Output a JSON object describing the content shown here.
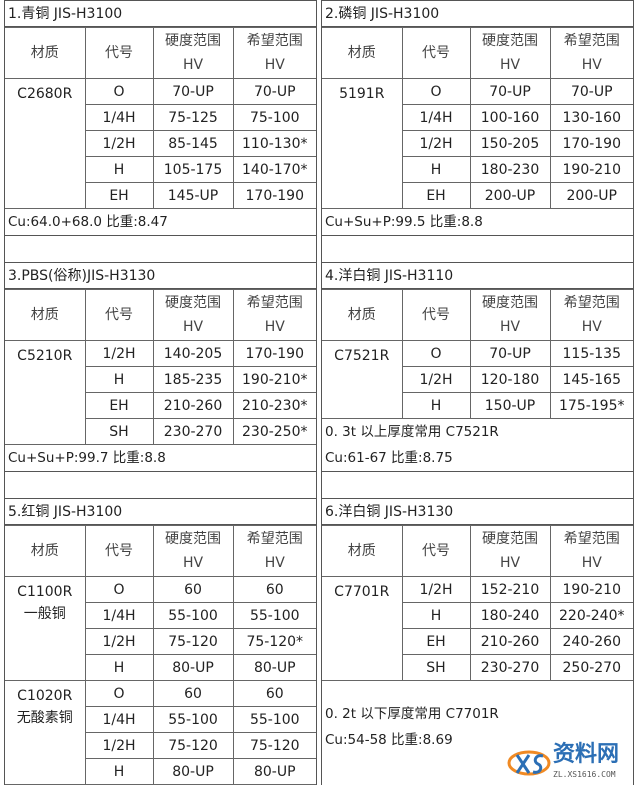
{
  "headers": {
    "material": "材质",
    "code": "代号",
    "hardness": "硬度范围",
    "desired": "希望范围",
    "unit": "HV"
  },
  "sections": [
    {
      "title": "1.青铜 JIS-H3100",
      "groups": [
        {
          "material": [
            "C2680R"
          ],
          "rows": [
            [
              "O",
              "70-UP",
              "70-UP"
            ],
            [
              "1/4H",
              "75-125",
              "75-100"
            ],
            [
              "1/2H",
              "85-145",
              "110-130*"
            ],
            [
              "H",
              "105-175",
              "140-170*"
            ],
            [
              "EH",
              "145-UP",
              "170-190"
            ]
          ]
        }
      ],
      "notes": [
        "Cu:64.0+68.0  比重:8.47"
      ]
    },
    {
      "title": "2.磷铜 JIS-H3100",
      "groups": [
        {
          "material": [
            "5191R"
          ],
          "rows": [
            [
              "O",
              "70-UP",
              "70-UP"
            ],
            [
              "1/4H",
              "100-160",
              "130-160"
            ],
            [
              "1/2H",
              "150-205",
              "170-190"
            ],
            [
              "H",
              "180-230",
              "190-210"
            ],
            [
              "EH",
              "200-UP",
              "200-UP"
            ]
          ]
        }
      ],
      "notes": [
        "Cu+Su+P:99.5  比重:8.8"
      ]
    },
    {
      "title": "3.PBS(俗称)JIS-H3130",
      "groups": [
        {
          "material": [
            "C5210R"
          ],
          "rows": [
            [
              "1/2H",
              "140-205",
              "170-190"
            ],
            [
              "H",
              "185-235",
              "190-210*"
            ],
            [
              "EH",
              "210-260",
              "210-230*"
            ],
            [
              "SH",
              "230-270",
              "230-250*"
            ]
          ]
        }
      ],
      "notes": [
        "Cu+Su+P:99.7  比重:8.8"
      ]
    },
    {
      "title": "4.洋白铜 JIS-H3110",
      "groups": [
        {
          "material": [
            "C7521R"
          ],
          "rows": [
            [
              "O",
              "70-UP",
              "115-135"
            ],
            [
              "1/2H",
              "120-180",
              "145-165"
            ],
            [
              "H",
              "150-UP",
              "175-195*"
            ]
          ]
        }
      ],
      "notes": [
        "0.  3t 以上厚度常用 C7521R",
        "Cu:61-67  比重:8.75"
      ]
    },
    {
      "title": "5.红铜 JIS-H3100",
      "groups": [
        {
          "material": [
            "C1100R",
            "一般铜"
          ],
          "rows": [
            [
              "O",
              "60",
              "60"
            ],
            [
              "1/4H",
              "55-100",
              "55-100"
            ],
            [
              "1/2H",
              "75-120",
              "75-120*"
            ],
            [
              "H",
              "80-UP",
              "80-UP"
            ]
          ]
        },
        {
          "material": [
            "C1020R",
            "无酸素铜"
          ],
          "rows": [
            [
              "O",
              "60",
              "60"
            ],
            [
              "1/4H",
              "55-100",
              "55-100"
            ],
            [
              "1/2H",
              "75-120",
              "75-120"
            ],
            [
              "H",
              "80-UP",
              "80-UP"
            ]
          ]
        }
      ],
      "notes": []
    },
    {
      "title": "6.洋白铜 JIS-H3130",
      "groups": [
        {
          "material": [
            "C7701R"
          ],
          "rows": [
            [
              "1/2H",
              "152-210",
              "190-210"
            ],
            [
              "H",
              "180-240",
              "220-240*"
            ],
            [
              "EH",
              "210-260",
              "240-260"
            ],
            [
              "SH",
              "230-270",
              "250-270"
            ]
          ]
        }
      ],
      "notes": [
        "0.  2t 以下厚度常用 C7701R",
        "Cu:54-58  比重:8.69"
      ]
    }
  ],
  "watermark": {
    "text": "资料网",
    "url": "ZL.XS1616.COM"
  }
}
